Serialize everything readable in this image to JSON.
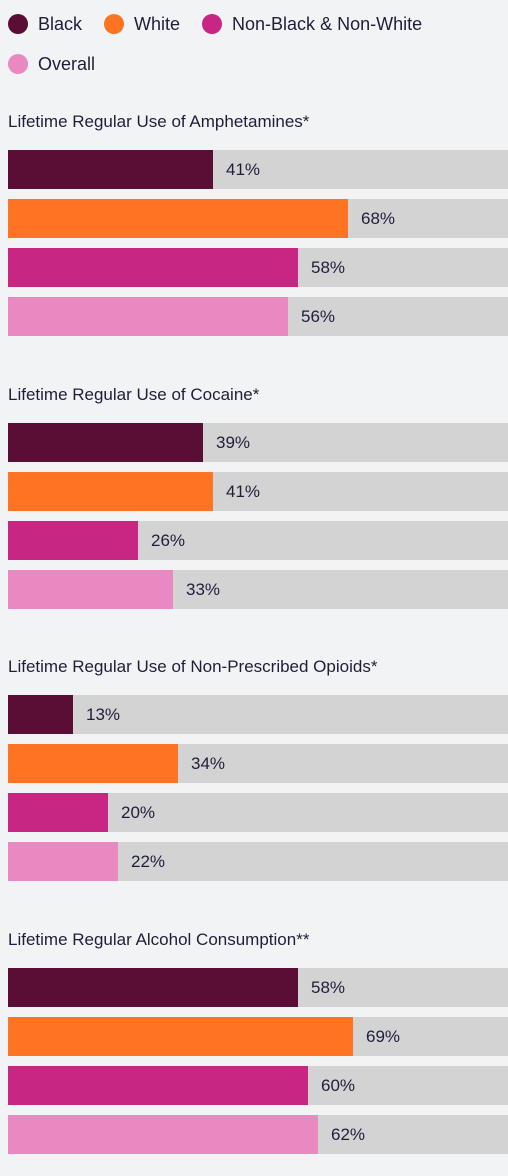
{
  "legend": [
    {
      "label": "Black",
      "color": "#5a0d35"
    },
    {
      "label": "White",
      "color": "#ff7422"
    },
    {
      "label": "Non-Black & Non-White",
      "color": "#c72682"
    },
    {
      "label": "Overall",
      "color": "#ea89c1"
    }
  ],
  "chart_data": [
    {
      "type": "bar",
      "title": "Lifetime Regular Use of Amphetamines*",
      "categories": [
        "Black",
        "White",
        "Non-Black & Non-White",
        "Overall"
      ],
      "values": [
        41,
        68,
        58,
        56
      ],
      "value_labels": [
        "41%",
        "68%",
        "58%",
        "56%"
      ],
      "xlim": [
        0,
        100
      ],
      "unit": "%"
    },
    {
      "type": "bar",
      "title": "Lifetime Regular Use of Cocaine*",
      "categories": [
        "Black",
        "White",
        "Non-Black & Non-White",
        "Overall"
      ],
      "values": [
        39,
        41,
        26,
        33
      ],
      "value_labels": [
        "39%",
        "41%",
        "26%",
        "33%"
      ],
      "xlim": [
        0,
        100
      ],
      "unit": "%"
    },
    {
      "type": "bar",
      "title": "Lifetime Regular Use of Non-Prescribed Opioids*",
      "categories": [
        "Black",
        "White",
        "Non-Black & Non-White",
        "Overall"
      ],
      "values": [
        13,
        34,
        20,
        22
      ],
      "value_labels": [
        "13%",
        "34%",
        "20%",
        "22%"
      ],
      "xlim": [
        0,
        100
      ],
      "unit": "%"
    },
    {
      "type": "bar",
      "title": "Lifetime Regular Alcohol Consumption**",
      "categories": [
        "Black",
        "White",
        "Non-Black & Non-White",
        "Overall"
      ],
      "values": [
        58,
        69,
        60,
        62
      ],
      "value_labels": [
        "58%",
        "69%",
        "60%",
        "62%"
      ],
      "xlim": [
        0,
        100
      ],
      "unit": "%"
    }
  ]
}
